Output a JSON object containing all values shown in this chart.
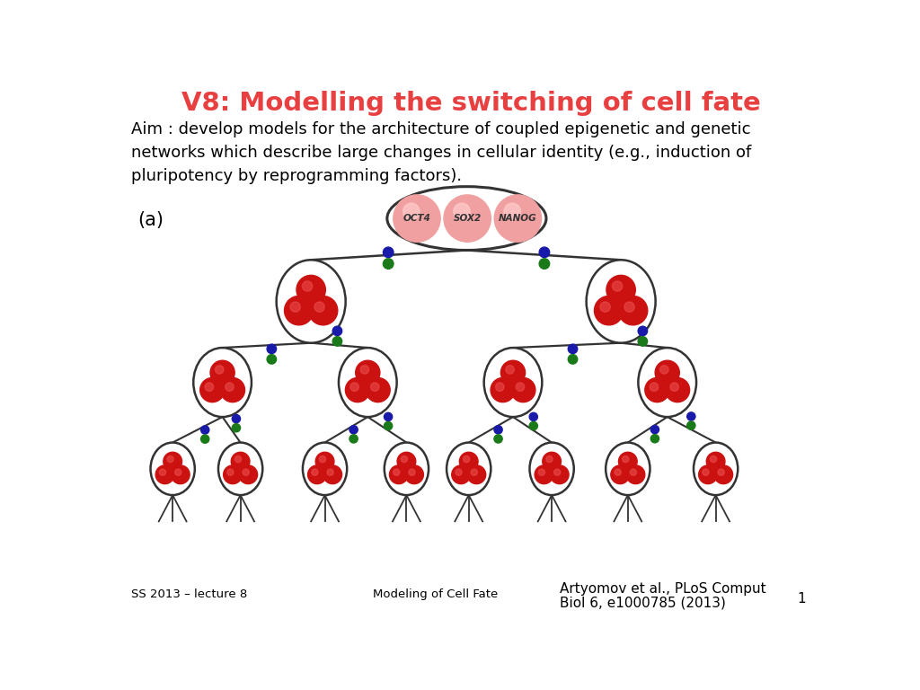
{
  "title": "V8: Modelling the switching of cell fate",
  "title_color": "#E84040",
  "aim_text": "Aim : develop models for the architecture of coupled epigenetic and genetic\nnetworks which describe large changes in cellular identity (e.g., induction of\npluripotency by reprogramming factors).",
  "footer_left": "SS 2013 – lecture 8",
  "footer_center": "Modeling of Cell Fate",
  "footer_right1": "Artyomov et al., PLoS Comput",
  "footer_right2": "Biol 6, e1000785 (2013)",
  "footer_page": "1",
  "label_a": "(a)",
  "oct4_label": "OCT4",
  "sox2_label": "SOX2",
  "nanog_label": "NANOG",
  "red_color": "#CC1111",
  "red_sheen": "#EE3333",
  "pink_color": "#F0A0A0",
  "green_color": "#1A7A1A",
  "blue_color": "#1A1AAA",
  "circle_edge": "#333333",
  "background": "#FFFFFF"
}
